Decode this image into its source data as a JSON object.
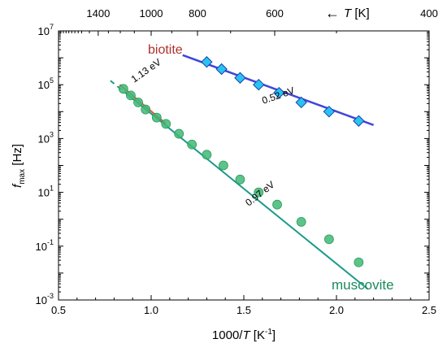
{
  "chart_data": {
    "type": "scatter",
    "xlabel_prefix": "1000/",
    "xlabel_var": "T",
    "xlabel_unit": " [K",
    "xlabel_exp": "-1",
    "xlabel_close": "]",
    "ylabel_var": "f",
    "ylabel_sub": "max",
    "ylabel_unit": " [Hz]",
    "top_axis_var": "T",
    "top_axis_unit": " [K]",
    "top_axis_arrow": "←",
    "xlim": [
      0.5,
      2.5
    ],
    "ylim_log10": [
      -3,
      7
    ],
    "log_y": true,
    "x_ticks": [
      "0.5",
      "1.0",
      "1.5",
      "2.0",
      "2.5"
    ],
    "top_ticks": [
      {
        "T": 1400,
        "label": "1400"
      },
      {
        "T": 1000,
        "label": "1000"
      },
      {
        "T": 800,
        "label": "800"
      },
      {
        "T": 600,
        "label": "600"
      },
      {
        "T": 400,
        "label": "400"
      }
    ],
    "y_ticks": [
      {
        "base": "10",
        "exp": "-3"
      },
      {
        "base": "10",
        "exp": "-1"
      },
      {
        "base": "10",
        "exp": "1"
      },
      {
        "base": "10",
        "exp": "3"
      },
      {
        "base": "10",
        "exp": "5"
      },
      {
        "base": "10",
        "exp": "7"
      }
    ],
    "annotations": [
      {
        "text": "biotite",
        "color": "#b0302a"
      },
      {
        "text": "muscovite",
        "color": "#1a8a5a"
      },
      {
        "text": "0.52 eV",
        "color": "#000000"
      },
      {
        "text": "1.13 eV",
        "color": "#000000"
      },
      {
        "text": "0.97 eV",
        "color": "#000000"
      }
    ],
    "series": [
      {
        "name": "biotite",
        "marker": "diamond",
        "color": "#29c3f2",
        "line_color": "#4046d8",
        "x": [
          1.3,
          1.38,
          1.48,
          1.58,
          1.69,
          1.81,
          1.96,
          2.12
        ],
        "y": [
          700000,
          380000,
          180000,
          100000,
          50000,
          22000,
          10000,
          4500
        ],
        "fit_x": [
          1.17,
          2.2
        ],
        "fit_log10_y": [
          6.1,
          3.5
        ]
      },
      {
        "name": "muscovite",
        "marker": "circle",
        "color": "#3fb874",
        "line_color": "#1a9a8a",
        "x": [
          0.85,
          0.89,
          0.93,
          0.97,
          1.03,
          1.08,
          1.15,
          1.22,
          1.3,
          1.39,
          1.48,
          1.58,
          1.68,
          1.81,
          1.96,
          2.12
        ],
        "y": [
          70000,
          40000,
          22000,
          12000,
          6000,
          3500,
          1500,
          600,
          250,
          100,
          30,
          10,
          3.5,
          0.8,
          0.18,
          0.025
        ],
        "fit_x": [
          0.78,
          2.17
        ],
        "fit_log10_y": [
          5.15,
          -2.6
        ],
        "fit_dashed_to_x": 0.86,
        "hightemp_fit_color": "#e0553a",
        "hightemp_fit_x": [
          0.83,
          1.08
        ],
        "hightemp_fit_log10_y": [
          5.0,
          3.55
        ]
      }
    ]
  }
}
